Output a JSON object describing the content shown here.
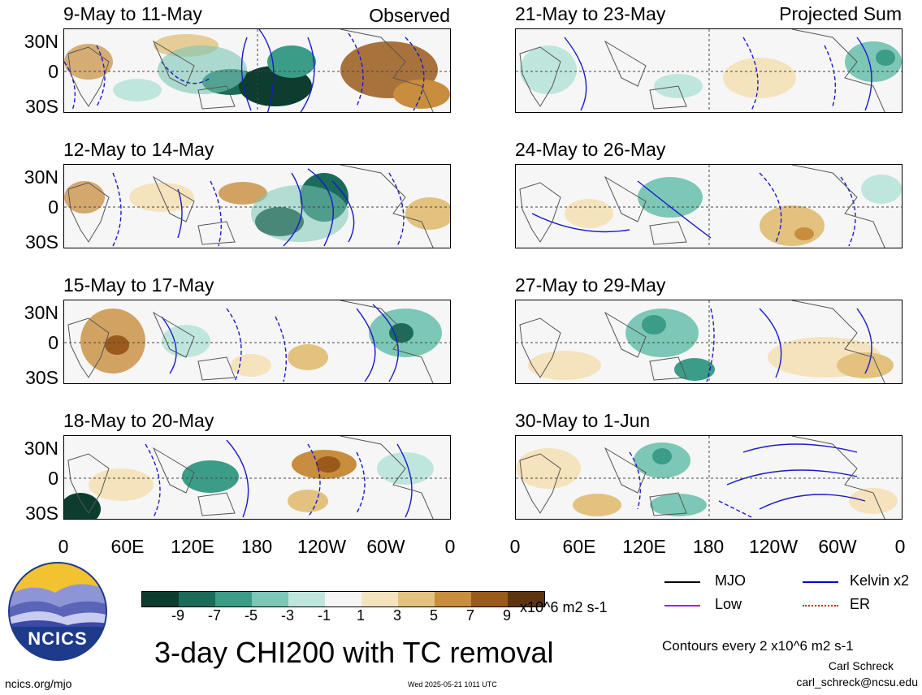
{
  "panels_left": [
    {
      "title": "9-May to 11-May",
      "tag": "Observed"
    },
    {
      "title": "12-May to 14-May",
      "tag": ""
    },
    {
      "title": "15-May to 17-May",
      "tag": ""
    },
    {
      "title": "18-May to 20-May",
      "tag": ""
    }
  ],
  "panels_right": [
    {
      "title": "21-May to 23-May",
      "tag": "Projected Sum"
    },
    {
      "title": "24-May to 26-May",
      "tag": ""
    },
    {
      "title": "27-May to 29-May",
      "tag": ""
    },
    {
      "title": "30-May to 1-Jun",
      "tag": ""
    }
  ],
  "lat_labels": [
    "30N",
    "0",
    "30S"
  ],
  "lon_labels": [
    "0",
    "60E",
    "120E",
    "180",
    "120W",
    "60W",
    "0"
  ],
  "colorbar": {
    "colors": [
      "#0c3d2f",
      "#1a6b5a",
      "#3b9c88",
      "#7cc7b6",
      "#bfe6dd",
      "#f5f5f5",
      "#f5e3bd",
      "#e2c27e",
      "#c88d3d",
      "#9a5a1c",
      "#5c3510"
    ],
    "ticks": [
      "-9",
      "-7",
      "-5",
      "-3",
      "-1",
      "1",
      "3",
      "5",
      "7",
      "9"
    ],
    "units": "x10^6 m2 s-1"
  },
  "legend": {
    "mjo": {
      "label": "MJO",
      "color": "#000000"
    },
    "kelvin": {
      "label": "Kelvin x2",
      "color": "#0000cc"
    },
    "low": {
      "label": "Low",
      "color": "#a020f0"
    },
    "er": {
      "label": "ER",
      "color": "#dd0000"
    }
  },
  "logo_text": "NCICS",
  "main_title": "3-day CHI200 with TC removal",
  "contours_note": "Contours every 2 x10^6 m2 s-1",
  "author": "Carl Schreck",
  "email": "carl_schreck@ncsu.edu",
  "site": "ncics.org/mjo",
  "timestamp": "Wed 2025-05-21 1011 UTC"
}
